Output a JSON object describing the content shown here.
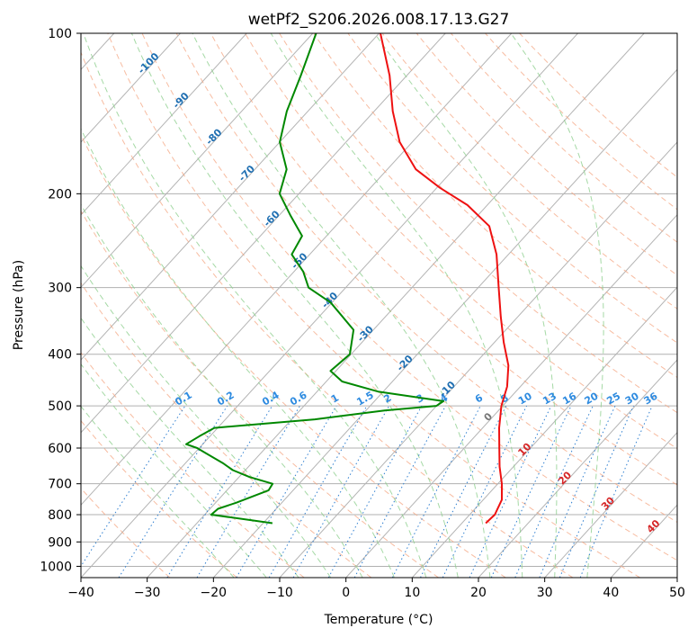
{
  "chart_data": {
    "type": "line",
    "title": "wetPf2_S206.2026.008.17.13.G27",
    "xlabel": "Temperature (°C)",
    "ylabel": "Pressure (hPa)",
    "xlim": [
      -40,
      50
    ],
    "ylim": [
      1050,
      100
    ],
    "yscale": "log",
    "grid": true,
    "x_ticks": [
      -40,
      -30,
      -20,
      -10,
      0,
      10,
      20,
      30,
      40,
      50
    ],
    "y_ticks": [
      100,
      200,
      300,
      400,
      500,
      600,
      700,
      800,
      900,
      1000
    ],
    "skew_reference": "skew-T log-p diagram",
    "series": [
      {
        "color": "#ee1111",
        "pressure": [
          830,
          800,
          750,
          700,
          650,
          600,
          550,
          500,
          460,
          420,
          380,
          340,
          300,
          260,
          230,
          210,
          195,
          180,
          160,
          140,
          120,
          100
        ],
        "values": [
          13.6,
          13.8,
          12.8,
          10.6,
          7.9,
          5.3,
          2.5,
          -0.2,
          -2.0,
          -4.7,
          -8.6,
          -12.6,
          -16.9,
          -21.8,
          -26.8,
          -33.0,
          -39.5,
          -45.7,
          -51.9,
          -57.2,
          -62.6,
          -69.8
        ]
      },
      {
        "color": "#008800",
        "pressure": [
          830,
          800,
          780,
          760,
          720,
          700,
          680,
          660,
          640,
          610,
          600,
          590,
          570,
          550,
          530,
          510,
          500,
          490,
          470,
          450,
          430,
          400,
          360,
          320,
          300,
          280,
          260,
          240,
          220,
          200,
          180,
          160,
          140,
          120,
          100
        ],
        "values": [
          -18.6,
          -29.0,
          -28.8,
          -26.9,
          -23.7,
          -24.0,
          -28.4,
          -31.9,
          -34.4,
          -38.8,
          -40.3,
          -42.5,
          -41.6,
          -40.5,
          -26.5,
          -17.2,
          -10.0,
          -9.6,
          -20.8,
          -27.6,
          -30.8,
          -30.2,
          -33.0,
          -40.2,
          -45.6,
          -48.6,
          -52.7,
          -53.7,
          -58.2,
          -62.9,
          -65.2,
          -70.0,
          -73.2,
          -76.0,
          -79.5
        ]
      }
    ],
    "dry_adiabats_C": [
      -30,
      -20,
      -10,
      0,
      10,
      20,
      30,
      40,
      50,
      60,
      70,
      80,
      90,
      100,
      110,
      120,
      130,
      140,
      150,
      160
    ],
    "moist_adiabats_C": [
      -20,
      -15,
      -10,
      -5,
      0,
      5,
      10,
      15,
      20,
      25,
      30,
      35
    ],
    "mixing_ratio_labels": [
      "0.1",
      "0.2",
      "0.4",
      "0.6",
      "1",
      "1.5",
      "2",
      "3",
      "4",
      "6",
      "8",
      "10",
      "13",
      "16",
      "20",
      "25",
      "30",
      "36"
    ],
    "mixing_ratio_values": [
      0.1,
      0.2,
      0.4,
      0.6,
      1,
      1.5,
      2,
      3,
      4,
      6,
      8,
      10,
      13,
      16,
      20,
      25,
      30,
      36
    ],
    "isotherm_labels_cold": [
      "-100",
      "-90",
      "-80",
      "-70",
      "-60",
      "-50",
      "-40",
      "-30",
      "-20",
      "-10"
    ],
    "isotherm_labels_warm": [
      "0",
      "10",
      "20",
      "30",
      "40"
    ],
    "colors": {
      "isotherm": "#b4b4b4",
      "gridline": "#b0b0b0",
      "dry_adiabat": "#f4a582",
      "moist_adiabat": "#8fcf8f",
      "mixing_ratio": "#2f7fd0",
      "label_cold": "#1f6fb2",
      "label_zero": "#777777",
      "label_warm": "#d62728",
      "mixing_label": "#2e8be0"
    }
  }
}
